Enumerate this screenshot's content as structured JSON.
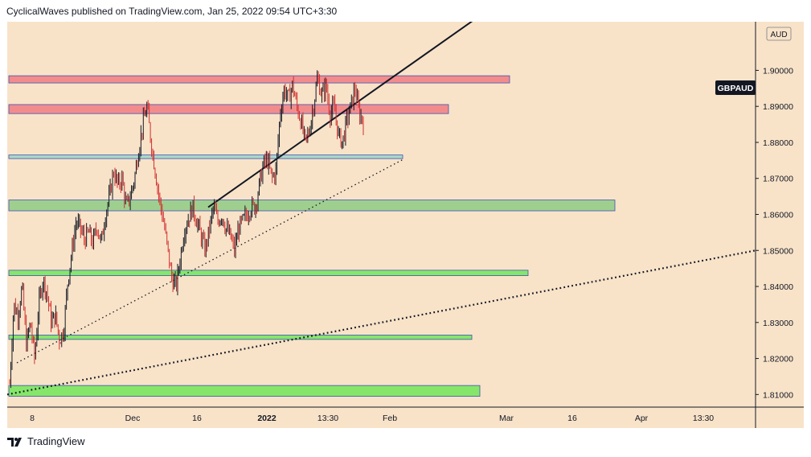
{
  "header": {
    "attribution": "CyclicalWaves published on TradingView.com, Jan 25, 2022 09:54 UTC+3:30"
  },
  "footer": {
    "brand": "TradingView"
  },
  "chart_data": {
    "type": "candlestick",
    "symbol_label": "GBPAUD",
    "currency_label": "AUD",
    "last_price": 1.886,
    "background_color": "#f8e3c9",
    "price_range": [
      1.8065,
      1.9135
    ],
    "price_ticks": [
      "1.90000",
      "1.89000",
      "1.88000",
      "1.87000",
      "1.86000",
      "1.85000",
      "1.84000",
      "1.83000",
      "1.82000",
      "1.81000"
    ],
    "time_ticks": [
      "8",
      "Dec",
      "16",
      "2022",
      "13:30",
      "Feb",
      "Mar",
      "16",
      "Apr",
      "13:30"
    ],
    "zones": [
      {
        "color": "resistance-red",
        "low": 1.8965,
        "high": 1.8985
      },
      {
        "color": "resistance-red",
        "low": 1.888,
        "high": 1.8905
      },
      {
        "color": "support-teal",
        "low": 1.8755,
        "high": 1.8765
      },
      {
        "color": "support-green",
        "low": 1.861,
        "high": 1.864
      },
      {
        "color": "support-lime",
        "low": 1.843,
        "high": 1.8445
      },
      {
        "color": "support-lime",
        "low": 1.8253,
        "high": 1.8265
      },
      {
        "color": "support-lime",
        "low": 1.8095,
        "high": 1.8125
      }
    ],
    "trendlines": [
      {
        "style": "solid",
        "from": [
          1.862
        ],
        "to": [
          1.9139
        ]
      },
      {
        "style": "dotted",
        "from": [
          1.8188
        ],
        "to": [
          1.8752
        ]
      },
      {
        "style": "dotted",
        "from": [
          1.81
        ],
        "to": [
          1.85
        ]
      }
    ],
    "price_path": [
      1.813,
      1.835,
      1.832,
      1.84,
      1.824,
      1.83,
      1.82,
      1.835,
      1.842,
      1.838,
      1.83,
      1.832,
      1.825,
      1.828,
      1.842,
      1.85,
      1.858,
      1.856,
      1.853,
      1.855,
      1.852,
      1.857,
      1.852,
      1.86,
      1.865,
      1.872,
      1.868,
      1.87,
      1.862,
      1.865,
      1.87,
      1.878,
      1.885,
      1.89,
      1.88,
      1.872,
      1.864,
      1.858,
      1.85,
      1.842,
      1.84,
      1.848,
      1.856,
      1.859,
      1.862,
      1.858,
      1.854,
      1.85,
      1.856,
      1.862,
      1.858,
      1.86,
      1.856,
      1.854,
      1.85,
      1.856,
      1.858,
      1.86,
      1.862,
      1.862,
      1.868,
      1.874,
      1.875,
      1.87,
      1.872,
      1.888,
      1.895,
      1.892,
      1.896,
      1.89,
      1.886,
      1.88,
      1.883,
      1.89,
      1.898,
      1.893,
      1.896,
      1.888,
      1.89,
      1.882,
      1.88,
      1.886,
      1.89,
      1.895,
      1.888,
      1.886
    ]
  }
}
